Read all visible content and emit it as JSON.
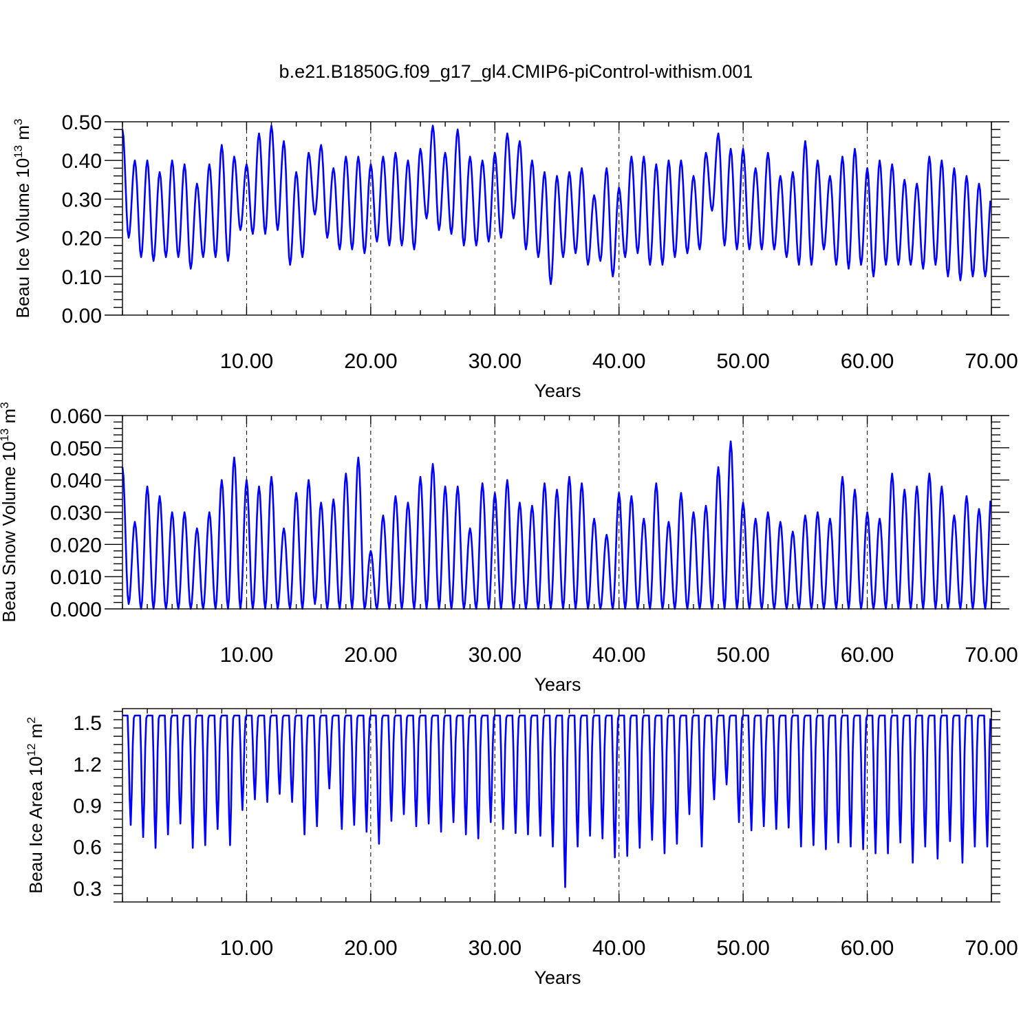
{
  "title": "b.e21.B1850G.f09_g17_gl4.CMIP6-piControl-withism.001",
  "colors": {
    "series": "#0000ff",
    "axis": "#000000",
    "background": "#ffffff"
  },
  "panels": [
    {
      "ylabel": {
        "main": "Beau Ice Volume 10",
        "sup": "13",
        "unit": " m",
        "unitSup": "3"
      },
      "xlabel": "Years",
      "yticklabels": [
        "0.00",
        "0.10",
        "0.20",
        "0.30",
        "0.40",
        "0.50"
      ],
      "xticklabels": [
        "10.00",
        "20.00",
        "30.00",
        "40.00",
        "50.00",
        "60.00",
        "70.00"
      ]
    },
    {
      "ylabel": {
        "main": "Beau Snow Volume 10",
        "sup": "13",
        "unit": " m",
        "unitSup": "3"
      },
      "xlabel": "Years",
      "yticklabels": [
        "0.000",
        "0.010",
        "0.020",
        "0.030",
        "0.040",
        "0.050",
        "0.060"
      ],
      "xticklabels": [
        "10.00",
        "20.00",
        "30.00",
        "40.00",
        "50.00",
        "60.00",
        "70.00"
      ]
    },
    {
      "ylabel": {
        "main": "Beau Ice Area 10",
        "sup": "12",
        "unit": " m",
        "unitSup": "2"
      },
      "xlabel": "Years",
      "yticklabels": [
        "0.3",
        "0.6",
        "0.9",
        "1.2",
        "1.5"
      ],
      "xticklabels": [
        "10.00",
        "20.00",
        "30.00",
        "40.00",
        "50.00",
        "60.00",
        "70.00"
      ]
    }
  ],
  "chart_data": [
    {
      "type": "line",
      "xlabel": "Years",
      "ylabel": "Beau Ice Volume 10^13 m^3",
      "xlim": [
        0,
        70
      ],
      "ylim": [
        0,
        0.5
      ],
      "xticks": [
        10,
        20,
        30,
        40,
        50,
        60,
        70
      ],
      "yticks": [
        0,
        0.1,
        0.2,
        0.3,
        0.4,
        0.5
      ],
      "grid": "dashed vertical lines at x-ticks",
      "annual_max": [
        0.48,
        0.4,
        0.4,
        0.37,
        0.4,
        0.39,
        0.34,
        0.39,
        0.44,
        0.41,
        0.39,
        0.47,
        0.49,
        0.45,
        0.37,
        0.42,
        0.44,
        0.38,
        0.41,
        0.41,
        0.39,
        0.41,
        0.42,
        0.4,
        0.43,
        0.49,
        0.42,
        0.48,
        0.41,
        0.4,
        0.42,
        0.47,
        0.45,
        0.4,
        0.37,
        0.36,
        0.37,
        0.38,
        0.31,
        0.38,
        0.33,
        0.41,
        0.41,
        0.39,
        0.4,
        0.4,
        0.36,
        0.42,
        0.47,
        0.43,
        0.43,
        0.38,
        0.42,
        0.36,
        0.37,
        0.45,
        0.4,
        0.36,
        0.41,
        0.43,
        0.38,
        0.4,
        0.39,
        0.35,
        0.34,
        0.41,
        0.4,
        0.38,
        0.36,
        0.34,
        0.31
      ],
      "annual_min": [
        0.2,
        0.15,
        0.14,
        0.15,
        0.15,
        0.12,
        0.15,
        0.15,
        0.14,
        0.22,
        0.21,
        0.21,
        0.22,
        0.13,
        0.15,
        0.26,
        0.2,
        0.17,
        0.17,
        0.16,
        0.19,
        0.18,
        0.18,
        0.17,
        0.25,
        0.22,
        0.21,
        0.18,
        0.18,
        0.19,
        0.2,
        0.25,
        0.17,
        0.15,
        0.08,
        0.15,
        0.16,
        0.13,
        0.14,
        0.1,
        0.15,
        0.16,
        0.13,
        0.13,
        0.15,
        0.16,
        0.17,
        0.27,
        0.18,
        0.17,
        0.17,
        0.17,
        0.17,
        0.15,
        0.13,
        0.13,
        0.17,
        0.13,
        0.12,
        0.13,
        0.1,
        0.13,
        0.13,
        0.13,
        0.12,
        0.13,
        0.1,
        0.09,
        0.1,
        0.1
      ]
    },
    {
      "type": "line",
      "xlabel": "Years",
      "ylabel": "Beau Snow Volume 10^13 m^3",
      "xlim": [
        0,
        70
      ],
      "ylim": [
        0,
        0.06
      ],
      "xticks": [
        10,
        20,
        30,
        40,
        50,
        60,
        70
      ],
      "yticks": [
        0,
        0.01,
        0.02,
        0.03,
        0.04,
        0.05,
        0.06
      ],
      "grid": "dashed vertical lines at x-ticks",
      "annual_max": [
        0.044,
        0.027,
        0.038,
        0.035,
        0.03,
        0.03,
        0.025,
        0.03,
        0.04,
        0.047,
        0.04,
        0.038,
        0.041,
        0.025,
        0.036,
        0.04,
        0.033,
        0.034,
        0.042,
        0.047,
        0.018,
        0.029,
        0.035,
        0.033,
        0.041,
        0.045,
        0.038,
        0.038,
        0.025,
        0.039,
        0.036,
        0.04,
        0.033,
        0.032,
        0.039,
        0.037,
        0.041,
        0.039,
        0.028,
        0.023,
        0.036,
        0.035,
        0.028,
        0.039,
        0.027,
        0.036,
        0.03,
        0.032,
        0.044,
        0.052,
        0.033,
        0.028,
        0.03,
        0.027,
        0.024,
        0.029,
        0.03,
        0.028,
        0.041,
        0.037,
        0.03,
        0.028,
        0.042,
        0.037,
        0.038,
        0.042,
        0.038,
        0.029,
        0.035,
        0.031,
        0.036
      ],
      "annual_min": [
        0.0015,
        0.0,
        0.0,
        0.0,
        0.0,
        0.0,
        0.0,
        0.0,
        0.0,
        0.0,
        0.0,
        0.0,
        0.0,
        0.0,
        0.0,
        0.0015,
        0.0,
        0.0,
        0.0,
        0.0,
        0.0,
        0.0,
        0.0,
        0.0,
        0.0,
        0.0,
        0.0,
        0.0,
        0.0,
        0.0,
        0.0,
        0.0,
        0.0,
        0.0,
        0.0,
        0.0,
        0.0,
        0.0,
        0.0,
        0.0,
        0.0,
        0.0,
        0.0,
        0.0,
        0.0,
        0.0,
        0.0,
        0.0,
        0.0,
        0.0,
        0.0,
        0.0,
        0.0,
        0.0,
        0.0,
        0.0,
        0.0,
        0.0,
        0.0,
        0.0,
        0.0,
        0.0,
        0.0,
        0.0,
        0.0,
        0.0,
        0.0,
        0.0,
        0.0,
        0.0
      ]
    },
    {
      "type": "line",
      "xlabel": "Years",
      "ylabel": "Beau Ice Area 10^12 m^2",
      "xlim": [
        0,
        70
      ],
      "ylim": [
        0.2,
        1.6
      ],
      "xticks": [
        10,
        20,
        30,
        40,
        50,
        60,
        70
      ],
      "yticks": [
        0.3,
        0.6,
        0.9,
        1.2,
        1.5
      ],
      "grid": "dashed vertical lines at x-ticks",
      "annual_max": [
        1.55
      ],
      "annual_min": [
        0.74,
        0.65,
        0.57,
        0.67,
        0.75,
        0.57,
        0.59,
        0.71,
        0.59,
        0.85,
        0.93,
        0.91,
        0.97,
        0.91,
        0.67,
        0.73,
        1.01,
        0.71,
        0.74,
        0.69,
        0.6,
        0.77,
        0.82,
        0.73,
        0.75,
        0.69,
        0.76,
        0.67,
        0.64,
        0.76,
        0.71,
        0.68,
        0.67,
        0.66,
        0.58,
        0.28,
        0.58,
        0.66,
        0.64,
        0.5,
        0.51,
        0.57,
        0.63,
        0.53,
        0.6,
        0.82,
        0.58,
        0.93,
        1.04,
        0.76,
        0.7,
        0.73,
        0.71,
        0.72,
        0.58,
        0.59,
        0.56,
        0.61,
        0.58,
        0.56,
        0.53,
        0.53,
        0.61,
        0.46,
        0.58,
        0.49,
        0.62,
        0.46,
        0.58,
        0.58
      ]
    }
  ]
}
